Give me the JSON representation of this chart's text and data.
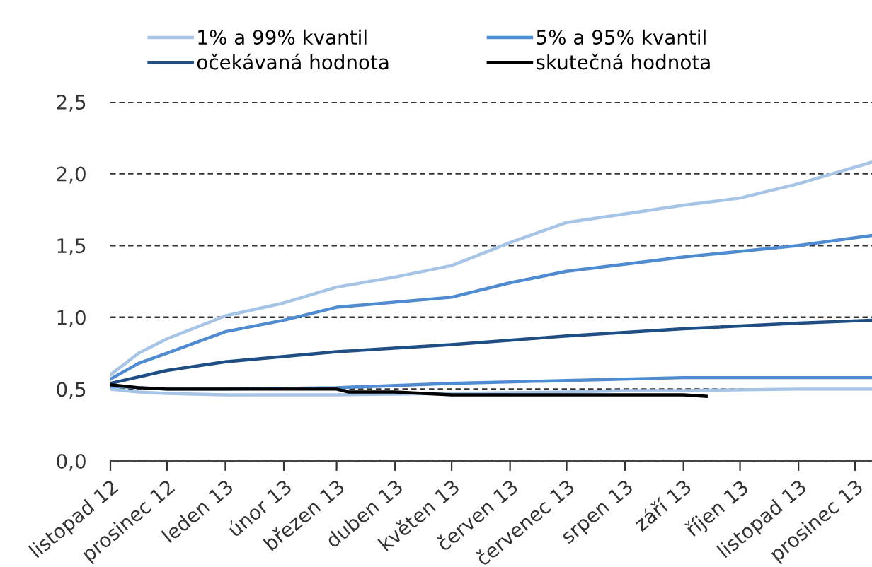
{
  "chart_data": {
    "type": "line",
    "xlim": [
      "2012-11-01",
      "2013-12-10"
    ],
    "ylim": [
      0,
      2.5
    ],
    "yticks": [
      {
        "value": 0,
        "label": "0,0"
      },
      {
        "value": 0.5,
        "label": "0,5"
      },
      {
        "value": 1,
        "label": "1,0"
      },
      {
        "value": 1.5,
        "label": "1,5"
      },
      {
        "value": 2,
        "label": "2,0"
      },
      {
        "value": 2.5,
        "label": "2,5"
      }
    ],
    "xticks": [
      {
        "value": "2012-11-01",
        "label": "listopad 12"
      },
      {
        "value": "2012-12-01",
        "label": "prosinec 12"
      },
      {
        "value": "2013-01-01",
        "label": "leden 13"
      },
      {
        "value": "2013-02-01",
        "label": "únor 13"
      },
      {
        "value": "2013-03-01",
        "label": "březen 13"
      },
      {
        "value": "2013-04-01",
        "label": "duben 13"
      },
      {
        "value": "2013-05-01",
        "label": "květen 13"
      },
      {
        "value": "2013-06-01",
        "label": "červen 13"
      },
      {
        "value": "2013-07-01",
        "label": "červenec 13"
      },
      {
        "value": "2013-08-01",
        "label": "srpen 13"
      },
      {
        "value": "2013-09-01",
        "label": "září 13"
      },
      {
        "value": "2013-10-01",
        "label": "říjen 13"
      },
      {
        "value": "2013-11-01",
        "label": "listopad 13"
      },
      {
        "value": "2013-12-01",
        "label": "prosinec 13"
      }
    ],
    "grid": "y",
    "legend": "top",
    "line_style": "solid",
    "marker": "none",
    "series": [
      {
        "name": "1% a 99% kvantil",
        "color": "#a6c4e6",
        "x": [
          "2012-11-01",
          "2012-11-16",
          "2012-12-01",
          "2013-01-01",
          "2013-02-01",
          "2013-03-01",
          "2013-04-01",
          "2013-05-01",
          "2013-06-01",
          "2013-07-01",
          "2013-08-01",
          "2013-09-01",
          "2013-10-01",
          "2013-11-01",
          "2013-12-10"
        ],
        "values": [
          0.6,
          0.75,
          0.85,
          1.01,
          1.1,
          1.21,
          1.28,
          1.36,
          1.52,
          1.66,
          1.72,
          1.78,
          1.83,
          1.93,
          2.08
        ]
      },
      {
        "name": null,
        "color": "#a6c4e6",
        "x": [
          "2012-11-01",
          "2012-11-16",
          "2012-12-01",
          "2013-01-01",
          "2013-03-01",
          "2013-05-01",
          "2013-07-01",
          "2013-08-01",
          "2013-09-01",
          "2013-11-01",
          "2013-12-10"
        ],
        "values": [
          0.5,
          0.48,
          0.47,
          0.46,
          0.46,
          0.47,
          0.48,
          0.49,
          0.49,
          0.5,
          0.5
        ]
      },
      {
        "name": "5% a 95% kvantil",
        "color": "#4f8bd0",
        "x": [
          "2012-11-01",
          "2012-11-16",
          "2012-12-01",
          "2013-01-01",
          "2013-02-01",
          "2013-03-01",
          "2013-05-01",
          "2013-06-01",
          "2013-07-01",
          "2013-09-01",
          "2013-11-01",
          "2013-12-10"
        ],
        "values": [
          0.57,
          0.68,
          0.75,
          0.9,
          0.98,
          1.07,
          1.14,
          1.24,
          1.32,
          1.42,
          1.5,
          1.57
        ]
      },
      {
        "name": null,
        "color": "#4f8bd0",
        "x": [
          "2012-11-01",
          "2012-12-01",
          "2013-01-01",
          "2013-03-01",
          "2013-05-01",
          "2013-07-01",
          "2013-09-01",
          "2013-11-01",
          "2013-12-10"
        ],
        "values": [
          0.52,
          0.5,
          0.5,
          0.51,
          0.54,
          0.56,
          0.58,
          0.58,
          0.58
        ]
      },
      {
        "name": "očekávaná hodnota",
        "color": "#1f4e85",
        "x": [
          "2012-11-01",
          "2012-12-01",
          "2013-01-01",
          "2013-03-01",
          "2013-05-01",
          "2013-07-01",
          "2013-09-01",
          "2013-11-01",
          "2013-12-10"
        ],
        "values": [
          0.54,
          0.63,
          0.69,
          0.76,
          0.81,
          0.87,
          0.92,
          0.96,
          0.98
        ]
      },
      {
        "name": "skutečná hodnota",
        "color": "#000000",
        "x": [
          "2012-11-01",
          "2012-11-16",
          "2012-12-01",
          "2013-01-01",
          "2013-03-01",
          "2013-03-07",
          "2013-04-01",
          "2013-05-01",
          "2013-07-01",
          "2013-09-01",
          "2013-09-13"
        ],
        "values": [
          0.53,
          0.51,
          0.5,
          0.5,
          0.5,
          0.48,
          0.48,
          0.46,
          0.46,
          0.46,
          0.45
        ]
      }
    ]
  }
}
